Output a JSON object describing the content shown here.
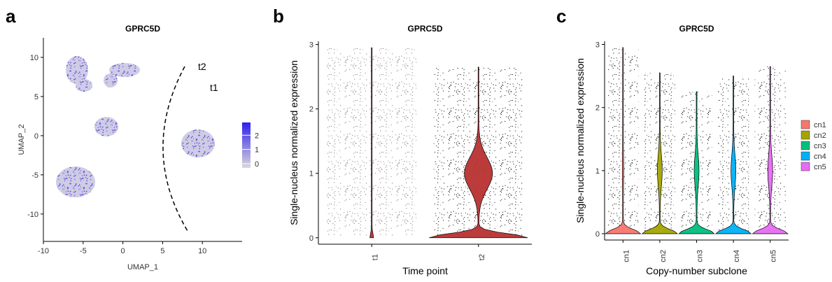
{
  "panel_labels": [
    "a",
    "b",
    "c"
  ],
  "chart_data": [
    {
      "type": "scatter",
      "title": "GPRC5D",
      "x_label": "UMAP_1",
      "y_label": "UMAP_2",
      "xlim": [
        -10,
        15
      ],
      "ylim": [
        -13.5,
        12.5
      ],
      "xticks": [
        -10,
        -5,
        0,
        5,
        10
      ],
      "yticks": [
        -10,
        -5,
        0,
        5,
        10
      ],
      "annotations": [
        {
          "text": "t2",
          "color": "#b22222"
        },
        {
          "text": "t1",
          "color": "#000000"
        }
      ],
      "colorbar": {
        "lim": [
          -0.3,
          2.9
        ],
        "ticks": [
          0,
          1,
          2
        ],
        "colors": [
          "#d9d9d9",
          "#2f1ff0"
        ]
      }
    },
    {
      "type": "violin",
      "title": "GPRC5D",
      "x_label": "Time point",
      "y_label": "Single-nucleus normalized expression",
      "categories": [
        "t1",
        "t2"
      ],
      "max_values": [
        2.95,
        2.65
      ],
      "colors": [
        "#b83232",
        "#b83232"
      ],
      "ylim": [
        -0.1,
        3.05
      ],
      "yticks": [
        0,
        1,
        2,
        3
      ]
    },
    {
      "type": "violin",
      "title": "GPRC5D",
      "x_label": "Copy-number subclone",
      "y_label": "Single-nucleus normalized expression",
      "categories": [
        "cn1",
        "cn2",
        "cn3",
        "cn4",
        "cn5"
      ],
      "max_values": [
        2.95,
        2.55,
        2.25,
        2.5,
        2.65
      ],
      "colors": [
        "#F8766D",
        "#A3A500",
        "#00BF7D",
        "#00B0F6",
        "#E76BF3"
      ],
      "ylim": [
        -0.1,
        3.05
      ],
      "yticks": [
        0,
        1,
        2,
        3
      ],
      "legend": "right"
    }
  ]
}
